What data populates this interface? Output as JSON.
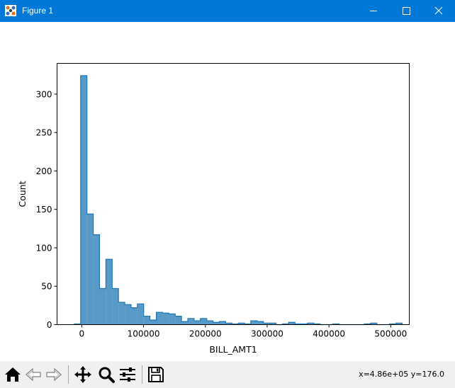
{
  "window": {
    "title": "Figure 1",
    "titlebar_color": "#0078d7"
  },
  "toolbar": {
    "buttons": [
      {
        "name": "home-icon",
        "tooltip": "Home"
      },
      {
        "name": "back-arrow-icon",
        "tooltip": "Back"
      },
      {
        "name": "forward-arrow-icon",
        "tooltip": "Forward"
      },
      {
        "name": "pan-icon",
        "tooltip": "Pan"
      },
      {
        "name": "zoom-icon",
        "tooltip": "Zoom"
      },
      {
        "name": "configure-subplots-icon",
        "tooltip": "Subplots"
      },
      {
        "name": "save-icon",
        "tooltip": "Save"
      }
    ],
    "coords": "x=4.86e+05 y=176.0"
  },
  "chart_data": {
    "type": "bar",
    "style": "histogram-step-filled",
    "xlabel": "BILL_AMT1",
    "ylabel": "Count",
    "xlim": [
      -40000,
      530000
    ],
    "ylim": [
      0,
      340
    ],
    "xticks": [
      0,
      100000,
      200000,
      300000,
      400000,
      500000
    ],
    "xtick_labels": [
      "0",
      "100000",
      "200000",
      "300000",
      "400000",
      "500000"
    ],
    "yticks": [
      0,
      50,
      100,
      150,
      200,
      250,
      300
    ],
    "ytick_labels": [
      "0",
      "50",
      "100",
      "150",
      "200",
      "250",
      "300"
    ],
    "bin_start": -12000,
    "bin_width": 10200,
    "values": [
      1,
      324,
      144,
      117,
      47,
      85,
      47,
      29,
      26,
      22,
      27,
      11,
      6,
      16,
      15,
      14,
      11,
      4,
      8,
      5,
      8,
      5,
      3,
      4,
      2,
      1,
      2,
      1,
      5,
      4,
      2,
      2,
      0,
      1,
      3,
      1,
      1,
      2,
      1,
      0,
      0,
      1,
      0,
      0,
      0,
      0,
      1,
      2,
      0,
      0,
      1,
      2
    ],
    "fill_color": "#1f77b4",
    "fill_opacity": 0.75,
    "edge_color": "#1f77b4",
    "grid": false
  }
}
